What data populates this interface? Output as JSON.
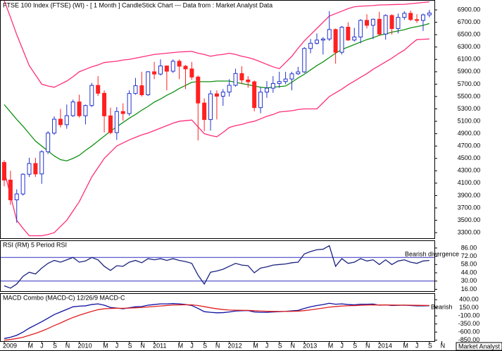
{
  "chart_data": [
    {
      "type": "candlestick",
      "title": "FTSE 100 Index (FTSE) (WI) -  [ 1 Month ] CandleStick Chart --- Data from : Market Analyst Data",
      "source": "Market Analyst",
      "up_color": "#2233cc",
      "down_color": "#ff2020",
      "categories": [
        "2009",
        null,
        null,
        null,
        "M",
        null,
        "J",
        null,
        "S",
        null,
        "N",
        null,
        "2010",
        null,
        null,
        null,
        "M",
        null,
        "J",
        null,
        "S",
        null,
        "N",
        null,
        "2011",
        null,
        null,
        null,
        "M",
        null,
        "J",
        null,
        "S",
        null,
        "N",
        null,
        "2012",
        null,
        null,
        null,
        "M",
        null,
        "J",
        null,
        "S",
        null,
        "N",
        null,
        "2013",
        null,
        null,
        null,
        "M",
        null,
        "J",
        null,
        "S",
        null,
        "N",
        null,
        "2014",
        null,
        null,
        null,
        "M",
        null,
        "J",
        null,
        "S",
        null,
        "N"
      ],
      "open": [
        4434,
        4150,
        3830,
        3926,
        4244,
        4418,
        4249,
        4608,
        4909,
        5134,
        5045,
        5191,
        5413,
        5189,
        5355,
        5680,
        5553,
        5188,
        4917,
        5258,
        5225,
        5549,
        5675,
        5528,
        5900,
        5863,
        5994,
        5909,
        6070,
        5990,
        5946,
        5815,
        5395,
        5128,
        5544,
        5505,
        5572,
        5682,
        5872,
        5768,
        5738,
        5321,
        5571,
        5635,
        5711,
        5742,
        5783,
        5867,
        5898,
        6277,
        6361,
        6412,
        6430,
        6583,
        6215,
        6621,
        6413,
        6462,
        6731,
        6651,
        6749,
        6510,
        6810,
        6598,
        6780,
        6845,
        6744,
        6730,
        6820,
        null,
        null
      ],
      "high": [
        4470,
        4300,
        4000,
        4260,
        4510,
        4510,
        4630,
        4940,
        5180,
        5300,
        5370,
        5450,
        5530,
        5370,
        5720,
        5830,
        5600,
        5320,
        5330,
        5390,
        5600,
        5800,
        5900,
        5910,
        6060,
        6100,
        6000,
        6100,
        6100,
        6010,
        6060,
        5840,
        5470,
        5600,
        5600,
        5620,
        5780,
        5950,
        5990,
        5830,
        5760,
        5650,
        5750,
        5830,
        5900,
        5900,
        5900,
        5980,
        6300,
        6430,
        6520,
        6460,
        6880,
        6600,
        6640,
        6700,
        6610,
        6750,
        6830,
        6760,
        6870,
        6830,
        6830,
        6840,
        6880,
        6890,
        6830,
        6840,
        6900,
        null,
        null
      ],
      "low": [
        4050,
        3750,
        3460,
        3900,
        4200,
        4200,
        4090,
        4570,
        4880,
        5000,
        4980,
        5170,
        5160,
        5050,
        5330,
        5510,
        4920,
        4890,
        4800,
        5110,
        5190,
        5530,
        5500,
        5510,
        5780,
        5840,
        5600,
        5880,
        5780,
        5620,
        5770,
        4790,
        4940,
        4950,
        5130,
        5350,
        5500,
        5660,
        5700,
        5640,
        5260,
        5230,
        5480,
        5560,
        5640,
        5700,
        5600,
        5850,
        5880,
        6200,
        6340,
        6180,
        6400,
        6030,
        6180,
        6400,
        6390,
        6360,
        6600,
        6430,
        6480,
        6420,
        6500,
        6520,
        6740,
        6720,
        6690,
        6560,
        6780,
        null,
        null
      ],
      "close": [
        4150,
        3830,
        3926,
        4244,
        4418,
        4249,
        4608,
        4909,
        5134,
        5045,
        5191,
        5413,
        5189,
        5355,
        5680,
        5553,
        5188,
        4917,
        5258,
        5225,
        5549,
        5675,
        5528,
        5900,
        5863,
        5994,
        5909,
        6070,
        5990,
        5946,
        5815,
        5395,
        5128,
        5544,
        5505,
        5572,
        5682,
        5872,
        5768,
        5738,
        5321,
        5571,
        5635,
        5711,
        5742,
        5783,
        5867,
        5898,
        6277,
        6361,
        6412,
        6430,
        6583,
        6215,
        6621,
        6413,
        6462,
        6731,
        6651,
        6749,
        6510,
        6810,
        6598,
        6780,
        6845,
        6744,
        6730,
        6820,
        6850,
        null,
        null
      ],
      "series": [
        {
          "color": "#ff2d7a",
          "values": [
            7050,
            6780,
            6500,
            6250,
            6000,
            5850,
            5700,
            5670,
            5650,
            5700,
            5750,
            5820,
            5900,
            5940,
            5980,
            6010,
            6050,
            6060,
            6070,
            6090,
            6100,
            6120,
            6140,
            6160,
            6180,
            6190,
            6200,
            6210,
            6220,
            6225,
            6230,
            6200,
            6180,
            6150,
            6170,
            6180,
            6200,
            6180,
            6150,
            6130,
            6100,
            6060,
            6020,
            5980,
            5950,
            6050,
            6150,
            6280,
            6400,
            6500,
            6600,
            6700,
            6800,
            6840,
            6880,
            6920,
            6950,
            6960,
            6965,
            6970,
            6980,
            6982,
            6985,
            6988,
            6990,
            7000,
            7010,
            7020,
            7030,
            null,
            null
          ]
        },
        {
          "color": "#109010",
          "values": [
            5370,
            5250,
            5130,
            5020,
            4900,
            4780,
            4700,
            4620,
            4540,
            4480,
            4460,
            4500,
            4550,
            4630,
            4700,
            4780,
            4860,
            4940,
            5010,
            5080,
            5150,
            5210,
            5280,
            5340,
            5410,
            5460,
            5520,
            5570,
            5630,
            5680,
            5730,
            5740,
            5740,
            5740,
            5750,
            5750,
            5750,
            5730,
            5710,
            5690,
            5670,
            5650,
            5640,
            5650,
            5660,
            5670,
            5730,
            5800,
            5860,
            5930,
            6000,
            6060,
            6130,
            6200,
            6260,
            6300,
            6340,
            6380,
            6420,
            6450,
            6490,
            6510,
            6540,
            6560,
            6580,
            6610,
            6630,
            6650,
            6680,
            null,
            null
          ]
        },
        {
          "color": "#ff2d7a",
          "values": [
            4300,
            3900,
            3500,
            3370,
            3250,
            3250,
            3250,
            3270,
            3300,
            3400,
            3500,
            3650,
            3800,
            4000,
            4200,
            4350,
            4500,
            4600,
            4700,
            4750,
            4800,
            4840,
            4880,
            4910,
            4950,
            4990,
            5030,
            5070,
            5100,
            5110,
            5120,
            5010,
            4900,
            4870,
            4850,
            4920,
            5000,
            5030,
            5050,
            5080,
            5100,
            5140,
            5180,
            5210,
            5250,
            5260,
            5270,
            5290,
            5300,
            5300,
            5300,
            5400,
            5500,
            5560,
            5620,
            5690,
            5750,
            5810,
            5870,
            5940,
            6000,
            6060,
            6120,
            6190,
            6250,
            6340,
            6420,
            6425,
            6430,
            null,
            null
          ]
        }
      ],
      "ylim": [
        3210,
        7060
      ],
      "yticks": [
        {
          "value": 3300,
          "label": "3300.00"
        },
        {
          "value": 3500,
          "label": "3500.00"
        },
        {
          "value": 3700,
          "label": "3700.00"
        },
        {
          "value": 3900,
          "label": "3900.00"
        },
        {
          "value": 4100,
          "label": "4100.00"
        },
        {
          "value": 4300,
          "label": "4300.00"
        },
        {
          "value": 4500,
          "label": "4500.00"
        },
        {
          "value": 4700,
          "label": "4700.00"
        },
        {
          "value": 4900,
          "label": "4900.00"
        },
        {
          "value": 5100,
          "label": "5100.00"
        },
        {
          "value": 5300,
          "label": "5300.00"
        },
        {
          "value": 5500,
          "label": "5500.00"
        },
        {
          "value": 5700,
          "label": "5700.00"
        },
        {
          "value": 5900,
          "label": "5900.00"
        },
        {
          "value": 6100,
          "label": "6100.00"
        },
        {
          "value": 6300,
          "label": "6300.00"
        },
        {
          "value": 6500,
          "label": "6500.00"
        },
        {
          "value": 6700,
          "label": "6700.00"
        },
        {
          "value": 6900,
          "label": "6900.00"
        }
      ]
    },
    {
      "type": "line",
      "title": "RSI (RM) 5 Period RSI",
      "annotation": "Bearish divergence",
      "levels": [
        70,
        30
      ],
      "level_color": "#3030c0",
      "series": [
        {
          "color": "#1a237e",
          "values": [
            22,
            18,
            25,
            38,
            45,
            42,
            52,
            60,
            65,
            62,
            66,
            70,
            62,
            64,
            70,
            66,
            55,
            48,
            56,
            55,
            62,
            65,
            61,
            68,
            66,
            68,
            65,
            68,
            65,
            63,
            60,
            40,
            25,
            45,
            47,
            50,
            55,
            60,
            57,
            56,
            44,
            52,
            54,
            57,
            58,
            59,
            61,
            62,
            76,
            80,
            83,
            84,
            90,
            55,
            68,
            60,
            62,
            68,
            64,
            66,
            58,
            66,
            58,
            64,
            66,
            62,
            60,
            64,
            65,
            null,
            null
          ]
        }
      ],
      "ylim": [
        13,
        99
      ],
      "yticks": [
        {
          "value": 16,
          "label": "16.00"
        },
        {
          "value": 30,
          "label": "30.00"
        },
        {
          "value": 44,
          "label": "44.00"
        },
        {
          "value": 58,
          "label": "58.00"
        },
        {
          "value": 72,
          "label": "72.00"
        },
        {
          "value": 86,
          "label": "86.00"
        }
      ]
    },
    {
      "type": "line",
      "title": "MACD Combo (MACD-C) 12/26/9 MACD-C",
      "annotation": "Bearish",
      "series": [
        {
          "color": "#1010a0",
          "values": [
            -800,
            -760,
            -700,
            -600,
            -480,
            -380,
            -280,
            -170,
            -60,
            20,
            100,
            180,
            200,
            210,
            250,
            270,
            230,
            160,
            140,
            120,
            150,
            180,
            190,
            230,
            250,
            270,
            270,
            280,
            270,
            250,
            220,
            130,
            30,
            10,
            -5,
            0,
            20,
            50,
            60,
            65,
            20,
            10,
            10,
            20,
            30,
            40,
            55,
            70,
            130,
            180,
            220,
            250,
            290,
            260,
            270,
            250,
            240,
            260,
            260,
            265,
            230,
            240,
            220,
            225,
            230,
            220,
            210,
            210,
            215,
            null,
            null
          ]
        },
        {
          "color": "#e02020",
          "values": [
            -850,
            -830,
            -800,
            -760,
            -700,
            -640,
            -570,
            -490,
            -400,
            -320,
            -230,
            -150,
            -80,
            -20,
            40,
            90,
            120,
            130,
            135,
            135,
            140,
            150,
            160,
            175,
            190,
            205,
            220,
            235,
            240,
            243,
            240,
            220,
            185,
            150,
            120,
            95,
            80,
            75,
            72,
            70,
            60,
            50,
            42,
            38,
            36,
            37,
            40,
            46,
            63,
            86,
            113,
            140,
            170,
            188,
            204,
            213,
            218,
            226,
            233,
            239,
            237,
            238,
            234,
            232,
            232,
            230,
            226,
            223,
            221,
            null,
            null
          ]
        }
      ],
      "ylim": [
        -880,
        600
      ],
      "yticks": [
        {
          "value": -850,
          "label": "-850.00"
        },
        {
          "value": -600,
          "label": "-600.00"
        },
        {
          "value": -350,
          "label": "-350.00"
        },
        {
          "value": -100,
          "label": "-100.00"
        },
        {
          "value": 150,
          "label": "150.00"
        },
        {
          "value": 400,
          "label": "400.00"
        }
      ]
    }
  ]
}
